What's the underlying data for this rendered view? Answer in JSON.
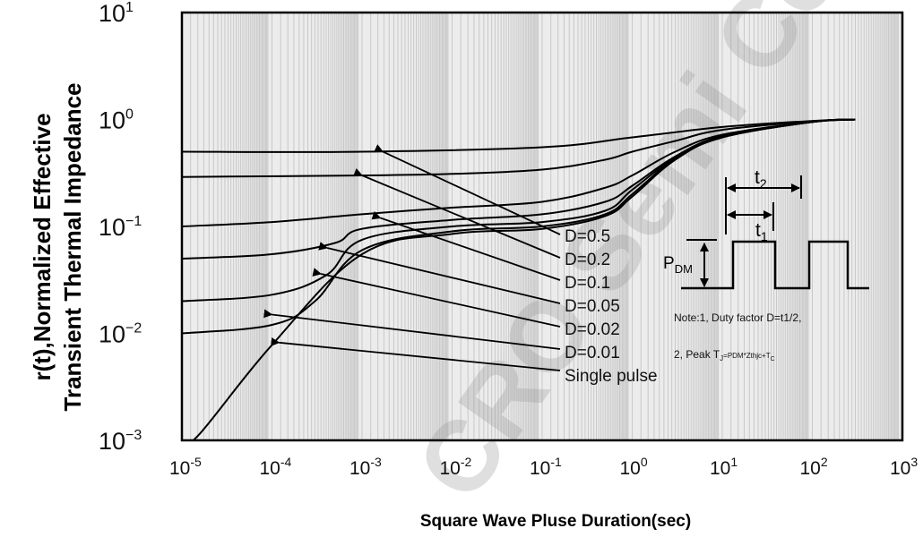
{
  "chart_data": {
    "type": "line",
    "xscale": "log",
    "yscale": "log",
    "xlim": [
      1e-05,
      1000
    ],
    "ylim": [
      0.001,
      10
    ],
    "grid": true,
    "xlabel": "Square Wave Pluse Duration(sec)",
    "ylabel_lines": [
      "r(t),Normalized Effective",
      "Transient Thermal Impedance"
    ],
    "x_ticks": [
      {
        "value": 1e-05,
        "base": "10",
        "exp": "-5"
      },
      {
        "value": 0.0001,
        "base": "10",
        "exp": "-4"
      },
      {
        "value": 0.001,
        "base": "10",
        "exp": "-3"
      },
      {
        "value": 0.01,
        "base": "10",
        "exp": "-2"
      },
      {
        "value": 0.1,
        "base": "10",
        "exp": "-1"
      },
      {
        "value": 1,
        "base": "10",
        "exp": "0"
      },
      {
        "value": 10,
        "base": "10",
        "exp": "1"
      },
      {
        "value": 100,
        "base": "10",
        "exp": "2"
      },
      {
        "value": 1000,
        "base": "10",
        "exp": "3"
      }
    ],
    "y_ticks": [
      {
        "value": 10,
        "base": "10",
        "exp": "1"
      },
      {
        "value": 1,
        "base": "10",
        "exp": "0"
      },
      {
        "value": 0.1,
        "base": "10",
        "exp": "−1"
      },
      {
        "value": 0.01,
        "base": "10",
        "exp": "−2"
      },
      {
        "value": 0.001,
        "base": "10",
        "exp": "−3"
      }
    ],
    "series": [
      {
        "name": "D=0.5",
        "x": [
          1e-05,
          0.001,
          0.1,
          1,
          10,
          100,
          300
        ],
        "y": [
          0.5,
          0.5,
          0.55,
          0.68,
          0.85,
          0.97,
          1.0
        ],
        "arrow_tip": [
          0.0017,
          0.5
        ]
      },
      {
        "name": "D=0.2",
        "x": [
          1e-05,
          0.001,
          0.01,
          0.1,
          0.5,
          1,
          3,
          10,
          100,
          300
        ],
        "y": [
          0.29,
          0.3,
          0.31,
          0.34,
          0.42,
          0.5,
          0.63,
          0.8,
          0.96,
          1.0
        ],
        "arrow_tip": [
          0.001,
          0.3
        ]
      },
      {
        "name": "D=0.1",
        "x": [
          1e-05,
          0.0001,
          0.001,
          0.01,
          0.1,
          0.5,
          1,
          3,
          10,
          100,
          300
        ],
        "y": [
          0.1,
          0.11,
          0.13,
          0.15,
          0.17,
          0.23,
          0.3,
          0.5,
          0.72,
          0.95,
          1.0
        ],
        "arrow_tip": [
          0.0016,
          0.12
        ]
      },
      {
        "name": "D=0.05",
        "x": [
          1e-05,
          0.0001,
          0.0005,
          0.001,
          0.01,
          0.1,
          0.5,
          1,
          3,
          10,
          100,
          300
        ],
        "y": [
          0.05,
          0.055,
          0.07,
          0.095,
          0.115,
          0.13,
          0.17,
          0.24,
          0.45,
          0.7,
          0.95,
          1.0
        ],
        "arrow_tip": [
          0.00041,
          0.063
        ]
      },
      {
        "name": "D=0.02",
        "x": [
          1e-05,
          0.0001,
          0.0004,
          0.001,
          0.01,
          0.1,
          0.5,
          1,
          3,
          10,
          100,
          300
        ],
        "y": [
          0.02,
          0.023,
          0.035,
          0.075,
          0.1,
          0.11,
          0.14,
          0.22,
          0.44,
          0.69,
          0.95,
          1.0
        ],
        "arrow_tip": [
          0.00035,
          0.036
        ]
      },
      {
        "name": "D=0.01",
        "x": [
          1e-05,
          0.0001,
          0.0003,
          0.001,
          0.01,
          0.1,
          0.5,
          1,
          3,
          10,
          100,
          300
        ],
        "y": [
          0.01,
          0.012,
          0.02,
          0.06,
          0.09,
          0.1,
          0.13,
          0.2,
          0.43,
          0.68,
          0.95,
          1.0
        ],
        "arrow_tip": [
          0.0001,
          0.015
        ]
      },
      {
        "name": "Single pulse",
        "x": [
          1e-05,
          1.5e-05,
          0.0001,
          0.001,
          0.01,
          0.1,
          0.5,
          1,
          3,
          10,
          100,
          300
        ],
        "y": [
          0.001,
          0.0011,
          0.0078,
          0.055,
          0.085,
          0.095,
          0.125,
          0.19,
          0.42,
          0.68,
          0.95,
          1.0
        ],
        "arrow_tip": [
          0.00012,
          0.0082
        ]
      }
    ],
    "label_color": "#111111",
    "line_color": "#000000",
    "grid_color": "#c8c8c8",
    "plot_background": "#ececec"
  },
  "inset": {
    "t2": "t",
    "t2_sub": "2",
    "t1": "t",
    "t1_sub": "1",
    "pdm": "P",
    "pdm_sub": "DM",
    "note1": "Note:1,    Duty factor D=t1/2,",
    "note2_prefix": "2,  Peak T",
    "note2_sub1": "J",
    "note2_mid": "=PDM*Zthjc+T",
    "note2_sub2": "C"
  },
  "watermark": "CRO Semi Cond"
}
